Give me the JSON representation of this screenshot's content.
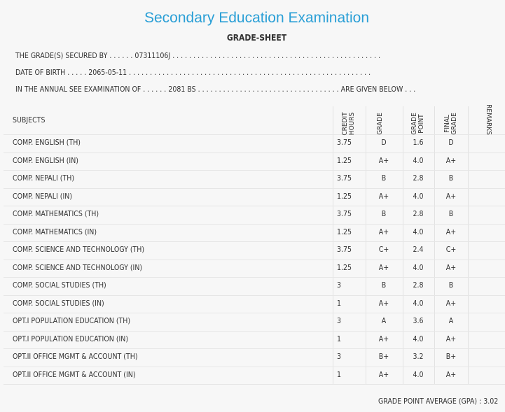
{
  "header": {
    "title": "Secondary Education Examination",
    "subtitle": "GRADE-SHEET"
  },
  "info": [
    {
      "label": "THE GRADE(S) SECURED BY . . . . . .",
      "value": "07311106J",
      "suffix": ". . . . . . . . . . . . . . . . . . . . . . . . . . . . . . . . . . . . . . . . . . . . . . . . . ."
    },
    {
      "label": "DATE OF BIRTH . . . . .",
      "value": "2065-05-11",
      "suffix": ". . . . . . . . . . . . . . . . . . . . . . . . . . . . . . . . . . . . . . . . . . . . . . . . . . . . . . . . . ."
    },
    {
      "label": "IN THE ANNUAL SEE EXAMINATION OF . . . . . .",
      "value": "2081 BS",
      "suffix": ". . . . . . . . . . . . . . . . . . . . . . . . . . . . . . . . . . ARE GIVEN BELOW . . ."
    }
  ],
  "table": {
    "columns": [
      "SUBJECTS",
      "CREDIT HOURS",
      "GRADE",
      "GRADE POINT",
      "FINAL GRADE",
      "REMARKS"
    ],
    "rows": [
      [
        "COMP. ENGLISH (TH)",
        "3.75",
        "D",
        "1.6",
        "D"
      ],
      [
        "COMP. ENGLISH (IN)",
        "1.25",
        "A+",
        "4.0",
        "A+"
      ],
      [
        "COMP. NEPALI (TH)",
        "3.75",
        "B",
        "2.8",
        "B"
      ],
      [
        "COMP. NEPALI (IN)",
        "1.25",
        "A+",
        "4.0",
        "A+"
      ],
      [
        "COMP. MATHEMATICS (TH)",
        "3.75",
        "B",
        "2.8",
        "B"
      ],
      [
        "COMP. MATHEMATICS (IN)",
        "1.25",
        "A+",
        "4.0",
        "A+"
      ],
      [
        "COMP. SCIENCE AND TECHNOLOGY (TH)",
        "3.75",
        "C+",
        "2.4",
        "C+"
      ],
      [
        "COMP. SCIENCE AND TECHNOLOGY (IN)",
        "1.25",
        "A+",
        "4.0",
        "A+"
      ],
      [
        "COMP. SOCIAL STUDIES (TH)",
        "3",
        "B",
        "2.8",
        "B"
      ],
      [
        "COMP. SOCIAL STUDIES (IN)",
        "1",
        "A+",
        "4.0",
        "A+"
      ],
      [
        "OPT.I POPULATION EDUCATION (TH)",
        "3",
        "A",
        "3.6",
        "A"
      ],
      [
        "OPT.I POPULATION EDUCATION (IN)",
        "1",
        "A+",
        "4.0",
        "A+"
      ],
      [
        "OPT.II OFFICE MGMT & ACCOUNT (TH)",
        "3",
        "B+",
        "3.2",
        "B+"
      ],
      [
        "OPT.II OFFICE MGMT & ACCOUNT (IN)",
        "1",
        "A+",
        "4.0",
        "A+"
      ]
    ]
  },
  "gpa": {
    "label": "GRADE POINT AVERAGE (GPA) :",
    "value": "3.02"
  }
}
